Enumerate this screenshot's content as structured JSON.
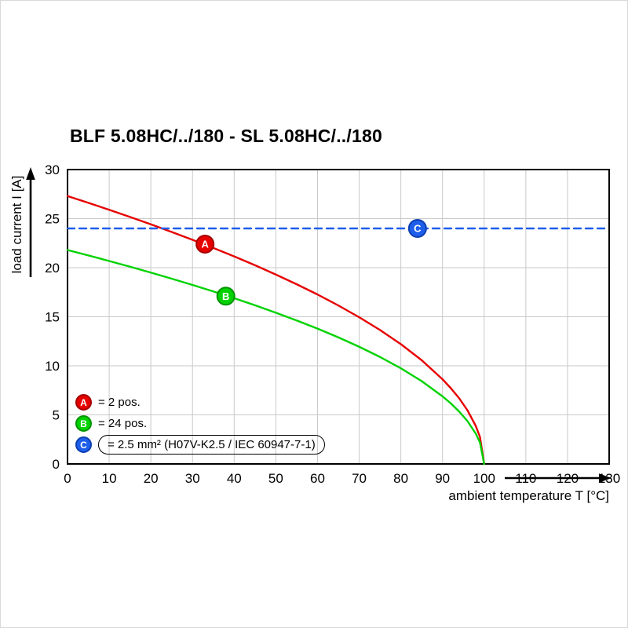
{
  "title": "BLF 5.08HC/../180 - SL 5.08HC/../180",
  "chart_data": {
    "type": "line",
    "title": "BLF 5.08HC/../180 - SL 5.08HC/../180",
    "xlabel": "ambient temperature T [°C]",
    "ylabel": "load current I [A]",
    "xlim": [
      0,
      130
    ],
    "ylim": [
      0,
      30
    ],
    "xticks": [
      0,
      10,
      20,
      30,
      40,
      50,
      60,
      70,
      80,
      90,
      100,
      110,
      120,
      130
    ],
    "yticks": [
      0,
      5,
      10,
      15,
      20,
      25,
      30
    ],
    "grid": true,
    "grid_color": "#c9c9c9",
    "frame_color": "#000000",
    "legend_position": "bottom-left-inside",
    "series": [
      {
        "name": "A",
        "label": "= 2 pos.",
        "color": "#e60000",
        "edge": "#a50000",
        "style": "solid",
        "points": [
          [
            0,
            27.3
          ],
          [
            5,
            26.61
          ],
          [
            10,
            25.9
          ],
          [
            15,
            25.17
          ],
          [
            20,
            24.42
          ],
          [
            25,
            23.64
          ],
          [
            30,
            22.84
          ],
          [
            35,
            22.01
          ],
          [
            40,
            21.15
          ],
          [
            45,
            20.25
          ],
          [
            50,
            19.3
          ],
          [
            55,
            18.31
          ],
          [
            60,
            17.27
          ],
          [
            65,
            16.15
          ],
          [
            70,
            14.95
          ],
          [
            75,
            13.65
          ],
          [
            80,
            12.21
          ],
          [
            85,
            10.57
          ],
          [
            90,
            8.63
          ],
          [
            92,
            7.72
          ],
          [
            94,
            6.69
          ],
          [
            96,
            5.46
          ],
          [
            98,
            3.86
          ],
          [
            99,
            2.73
          ],
          [
            100,
            0
          ]
        ]
      },
      {
        "name": "B",
        "label": "= 24 pos.",
        "color": "#00d200",
        "edge": "#009400",
        "style": "solid",
        "points": [
          [
            0,
            21.8
          ],
          [
            5,
            21.25
          ],
          [
            10,
            20.68
          ],
          [
            15,
            20.1
          ],
          [
            20,
            19.5
          ],
          [
            25,
            18.88
          ],
          [
            30,
            18.24
          ],
          [
            35,
            17.58
          ],
          [
            40,
            16.89
          ],
          [
            45,
            16.17
          ],
          [
            50,
            15.41
          ],
          [
            55,
            14.62
          ],
          [
            60,
            13.79
          ],
          [
            65,
            12.9
          ],
          [
            70,
            11.94
          ],
          [
            75,
            10.9
          ],
          [
            80,
            9.75
          ],
          [
            85,
            8.44
          ],
          [
            90,
            6.89
          ],
          [
            92,
            6.17
          ],
          [
            94,
            5.34
          ],
          [
            96,
            4.36
          ],
          [
            98,
            3.08
          ],
          [
            99,
            2.18
          ],
          [
            100,
            0
          ]
        ]
      },
      {
        "name": "C",
        "label": "= 2.5 mm² (H07V-K2.5 / IEC 60947-7-1)",
        "color": "#1e5eea",
        "edge": "#0d3fb0",
        "style": "dashed",
        "points": [
          [
            0,
            24
          ],
          [
            130,
            24
          ]
        ]
      }
    ],
    "markers": [
      {
        "letter": "A",
        "x": 33,
        "y": 22.4,
        "color": "#e60000",
        "edge": "#a50000"
      },
      {
        "letter": "B",
        "x": 38,
        "y": 17.1,
        "color": "#00d200",
        "edge": "#009400"
      },
      {
        "letter": "C",
        "x": 84,
        "y": 24,
        "color": "#1e5eea",
        "edge": "#0d3fb0"
      }
    ]
  }
}
